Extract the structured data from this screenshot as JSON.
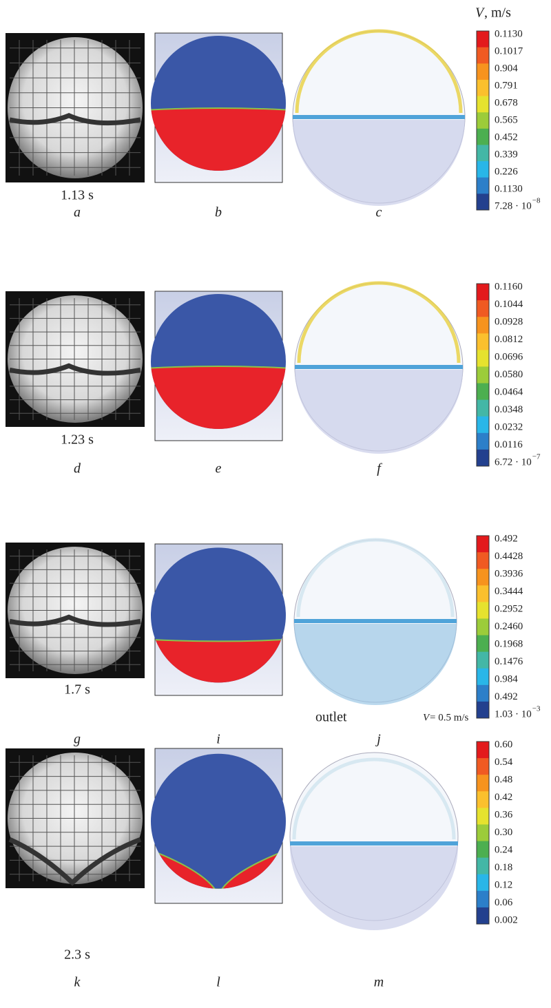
{
  "colorbar_title": {
    "symbol": "V",
    "unit": ", m/s"
  },
  "rows": [
    {
      "time": "1.13 s",
      "letters": [
        "a",
        "b",
        "c"
      ],
      "colorbar": [
        "0.1130",
        "0.1017",
        "0.904",
        "0.791",
        "0.678",
        "0.565",
        "0.452",
        "0.339",
        "0.226",
        "0.1130"
      ],
      "colorbar_min": {
        "mantissa": "7.28 · 10",
        "exponent": "−8"
      }
    },
    {
      "time": "1.23 s",
      "letters": [
        "d",
        "e",
        "f"
      ],
      "colorbar": [
        "0.1160",
        "0.1044",
        "0.0928",
        "0.0812",
        "0.0696",
        "0.0580",
        "0.0464",
        "0.0348",
        "0.0232",
        "0.0116"
      ],
      "colorbar_min": {
        "mantissa": "6.72 · 10",
        "exponent": "−7"
      }
    },
    {
      "time": "1.7 s",
      "letters": [
        "g",
        "i",
        "j"
      ],
      "colorbar": [
        "0.492",
        "0.4428",
        "0.3936",
        "0.3444",
        "0.2952",
        "0.2460",
        "0.1968",
        "0.1476",
        "0.984",
        "0.492"
      ],
      "colorbar_min": {
        "mantissa": "1.03 · 10",
        "exponent": "−3"
      }
    },
    {
      "time": "2.3 s",
      "letters": [
        "k",
        "l",
        "m"
      ],
      "colorbar": [
        "0.60",
        "0.54",
        "0.48",
        "0.42",
        "0.36",
        "0.30",
        "0.24",
        "0.18",
        "0.12",
        "0.06",
        "0.002"
      ]
    }
  ],
  "annotations": {
    "outlet": "outlet",
    "velocity": {
      "symbol": "V",
      "text": " = 0.5 m/s"
    }
  }
}
